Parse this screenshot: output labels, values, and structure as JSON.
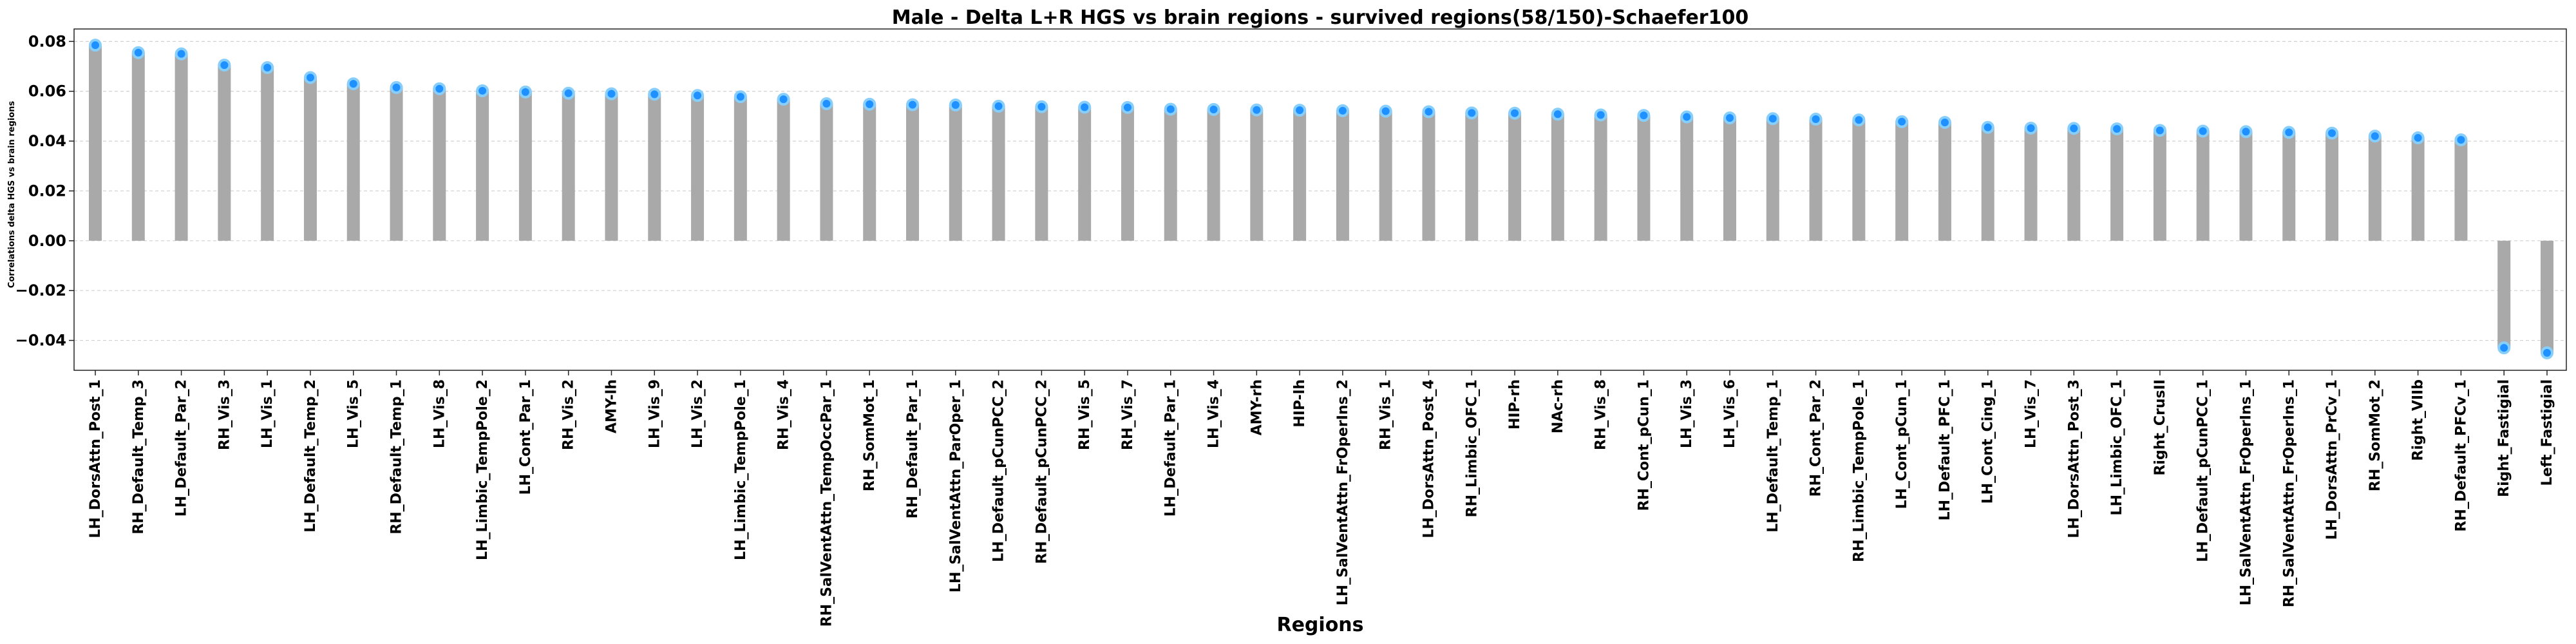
{
  "chart_data": {
    "type": "bar",
    "title": "Male - Delta L+R HGS vs brain regions - survived regions(58/150)-Schaefer100",
    "xlabel": "Regions",
    "ylabel": "Correlations delta HGS vs brain regions",
    "ylim": [
      -0.052,
      0.085
    ],
    "yticks": [
      0.08,
      0.06,
      0.04,
      0.02,
      0.0,
      -0.02,
      -0.04
    ],
    "ytick_labels": [
      "0.08",
      "0.06",
      "0.04",
      "0.02",
      "0.00",
      "−0.02",
      "−0.04"
    ],
    "grid": true,
    "colors": {
      "bar": "#a9a9a9",
      "point": "#1e90ff",
      "point_edge": "#87cefa"
    },
    "categories": [
      "LH_DorsAttn_Post_1",
      "RH_Default_Temp_3",
      "LH_Default_Par_2",
      "RH_Vis_3",
      "LH_Vis_1",
      "LH_Default_Temp_2",
      "LH_Vis_5",
      "RH_Default_Temp_1",
      "LH_Vis_8",
      "LH_Limbic_TempPole_2",
      "LH_Cont_Par_1",
      "RH_Vis_2",
      "AMY-lh",
      "LH_Vis_9",
      "LH_Vis_2",
      "LH_Limbic_TempPole_1",
      "RH_Vis_4",
      "RH_SalVentAttn_TempOccPar_1",
      "RH_SomMot_1",
      "RH_Default_Par_1",
      "LH_SalVentAttn_ParOper_1",
      "LH_Default_pCunPCC_2",
      "RH_Default_pCunPCC_2",
      "RH_Vis_5",
      "RH_Vis_7",
      "LH_Default_Par_1",
      "LH_Vis_4",
      "AMY-rh",
      "HIP-lh",
      "LH_SalVentAttn_FrOperIns_2",
      "RH_Vis_1",
      "LH_DorsAttn_Post_4",
      "RH_Limbic_OFC_1",
      "HIP-rh",
      "NAc-rh",
      "RH_Vis_8",
      "RH_Cont_pCun_1",
      "LH_Vis_3",
      "LH_Vis_6",
      "LH_Default_Temp_1",
      "RH_Cont_Par_2",
      "RH_Limbic_TempPole_1",
      "LH_Cont_pCun_1",
      "LH_Default_PFC_1",
      "LH_Cont_Cing_1",
      "LH_Vis_7",
      "LH_DorsAttn_Post_3",
      "LH_Limbic_OFC_1",
      "Right_CrusII",
      "LH_Default_pCunPCC_1",
      "LH_SalVentAttn_FrOperIns_1",
      "RH_SalVentAttn_FrOperIns_1",
      "LH_DorsAttn_PrCv_1",
      "RH_SomMot_2",
      "Right_VIIb",
      "RH_Default_PFCv_1",
      "Right_Fastigial",
      "Left_Fastigial"
    ],
    "values": [
      0.0785,
      0.0755,
      0.075,
      0.0705,
      0.0695,
      0.0655,
      0.063,
      0.0615,
      0.061,
      0.0602,
      0.0597,
      0.0592,
      0.059,
      0.0588,
      0.0583,
      0.0578,
      0.0568,
      0.055,
      0.0548,
      0.0546,
      0.0545,
      0.054,
      0.0538,
      0.0536,
      0.0535,
      0.0528,
      0.0527,
      0.0525,
      0.0524,
      0.0522,
      0.052,
      0.0518,
      0.0513,
      0.0512,
      0.0508,
      0.0505,
      0.0503,
      0.0497,
      0.0493,
      0.049,
      0.0488,
      0.0485,
      0.0478,
      0.0475,
      0.0455,
      0.0452,
      0.0451,
      0.0449,
      0.0443,
      0.044,
      0.0438,
      0.0435,
      0.0432,
      0.042,
      0.0413,
      0.0405,
      -0.043,
      -0.045
    ]
  }
}
